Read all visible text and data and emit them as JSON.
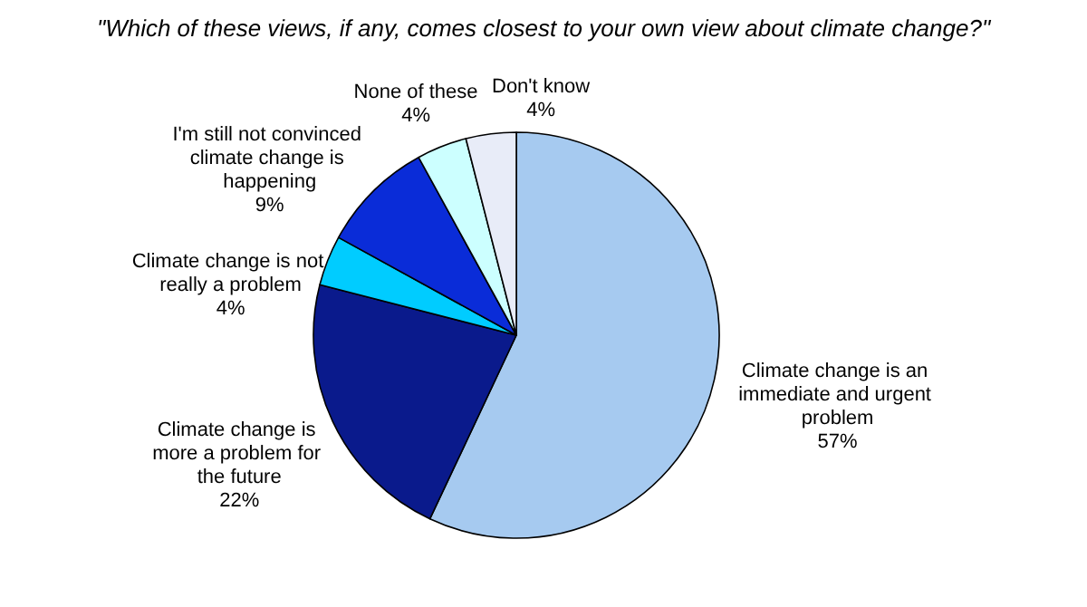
{
  "chart_data": {
    "type": "pie",
    "title": "\"Which of these views, if any, comes closest to your own view about climate change?\"",
    "categories": [
      "Climate change is an immediate and urgent problem",
      "Climate change is more a problem for the future",
      "Climate change is not really a problem",
      "I'm still not convinced climate change is happening",
      "None of these",
      "Don't know"
    ],
    "values": [
      57,
      22,
      4,
      9,
      4,
      4
    ],
    "value_labels": [
      "57%",
      "22%",
      "4%",
      "9%",
      "4%",
      "4%"
    ],
    "colors": [
      "#a6caf0",
      "#0a1a8c",
      "#00ccff",
      "#0a2cd8",
      "#ccffff",
      "#e8ecf8"
    ],
    "legend": false
  }
}
